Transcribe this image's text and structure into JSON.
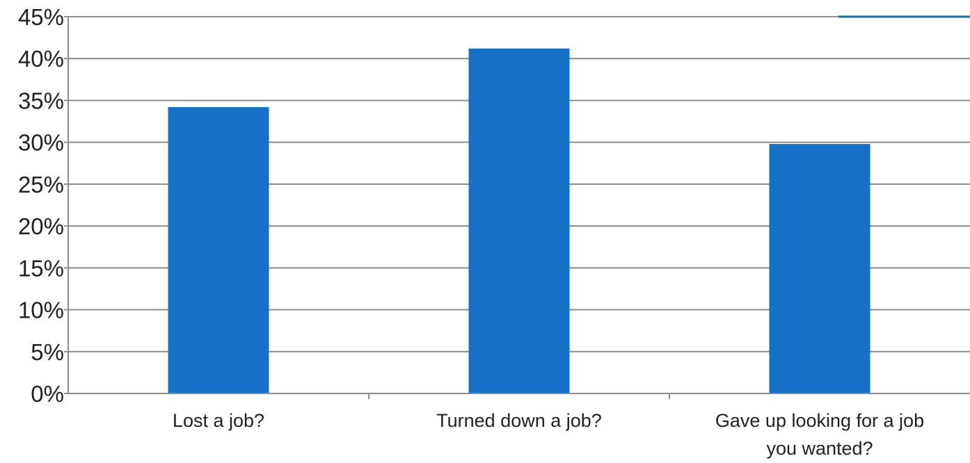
{
  "chart_data": {
    "type": "bar",
    "categories": [
      "Lost a job?",
      "Turned down a job?",
      [
        "Gave up looking for a job",
        "you wanted?"
      ]
    ],
    "values": [
      34.2,
      41.2,
      29.8
    ],
    "value_unit": "%",
    "ylim": [
      0,
      45
    ],
    "ytick_step": 5,
    "ytick_labels": [
      "0%",
      "5%",
      "10%",
      "15%",
      "20%",
      "25%",
      "30%",
      "35%",
      "40%",
      "45%"
    ],
    "title": "",
    "xlabel": "",
    "ylabel": "",
    "grid": true,
    "legend": "none",
    "colors": {
      "bar": "#1570c6",
      "grid": "#8c8c8c",
      "axis": "#8c8c8c",
      "accent_line": "#1a6e9a"
    }
  }
}
